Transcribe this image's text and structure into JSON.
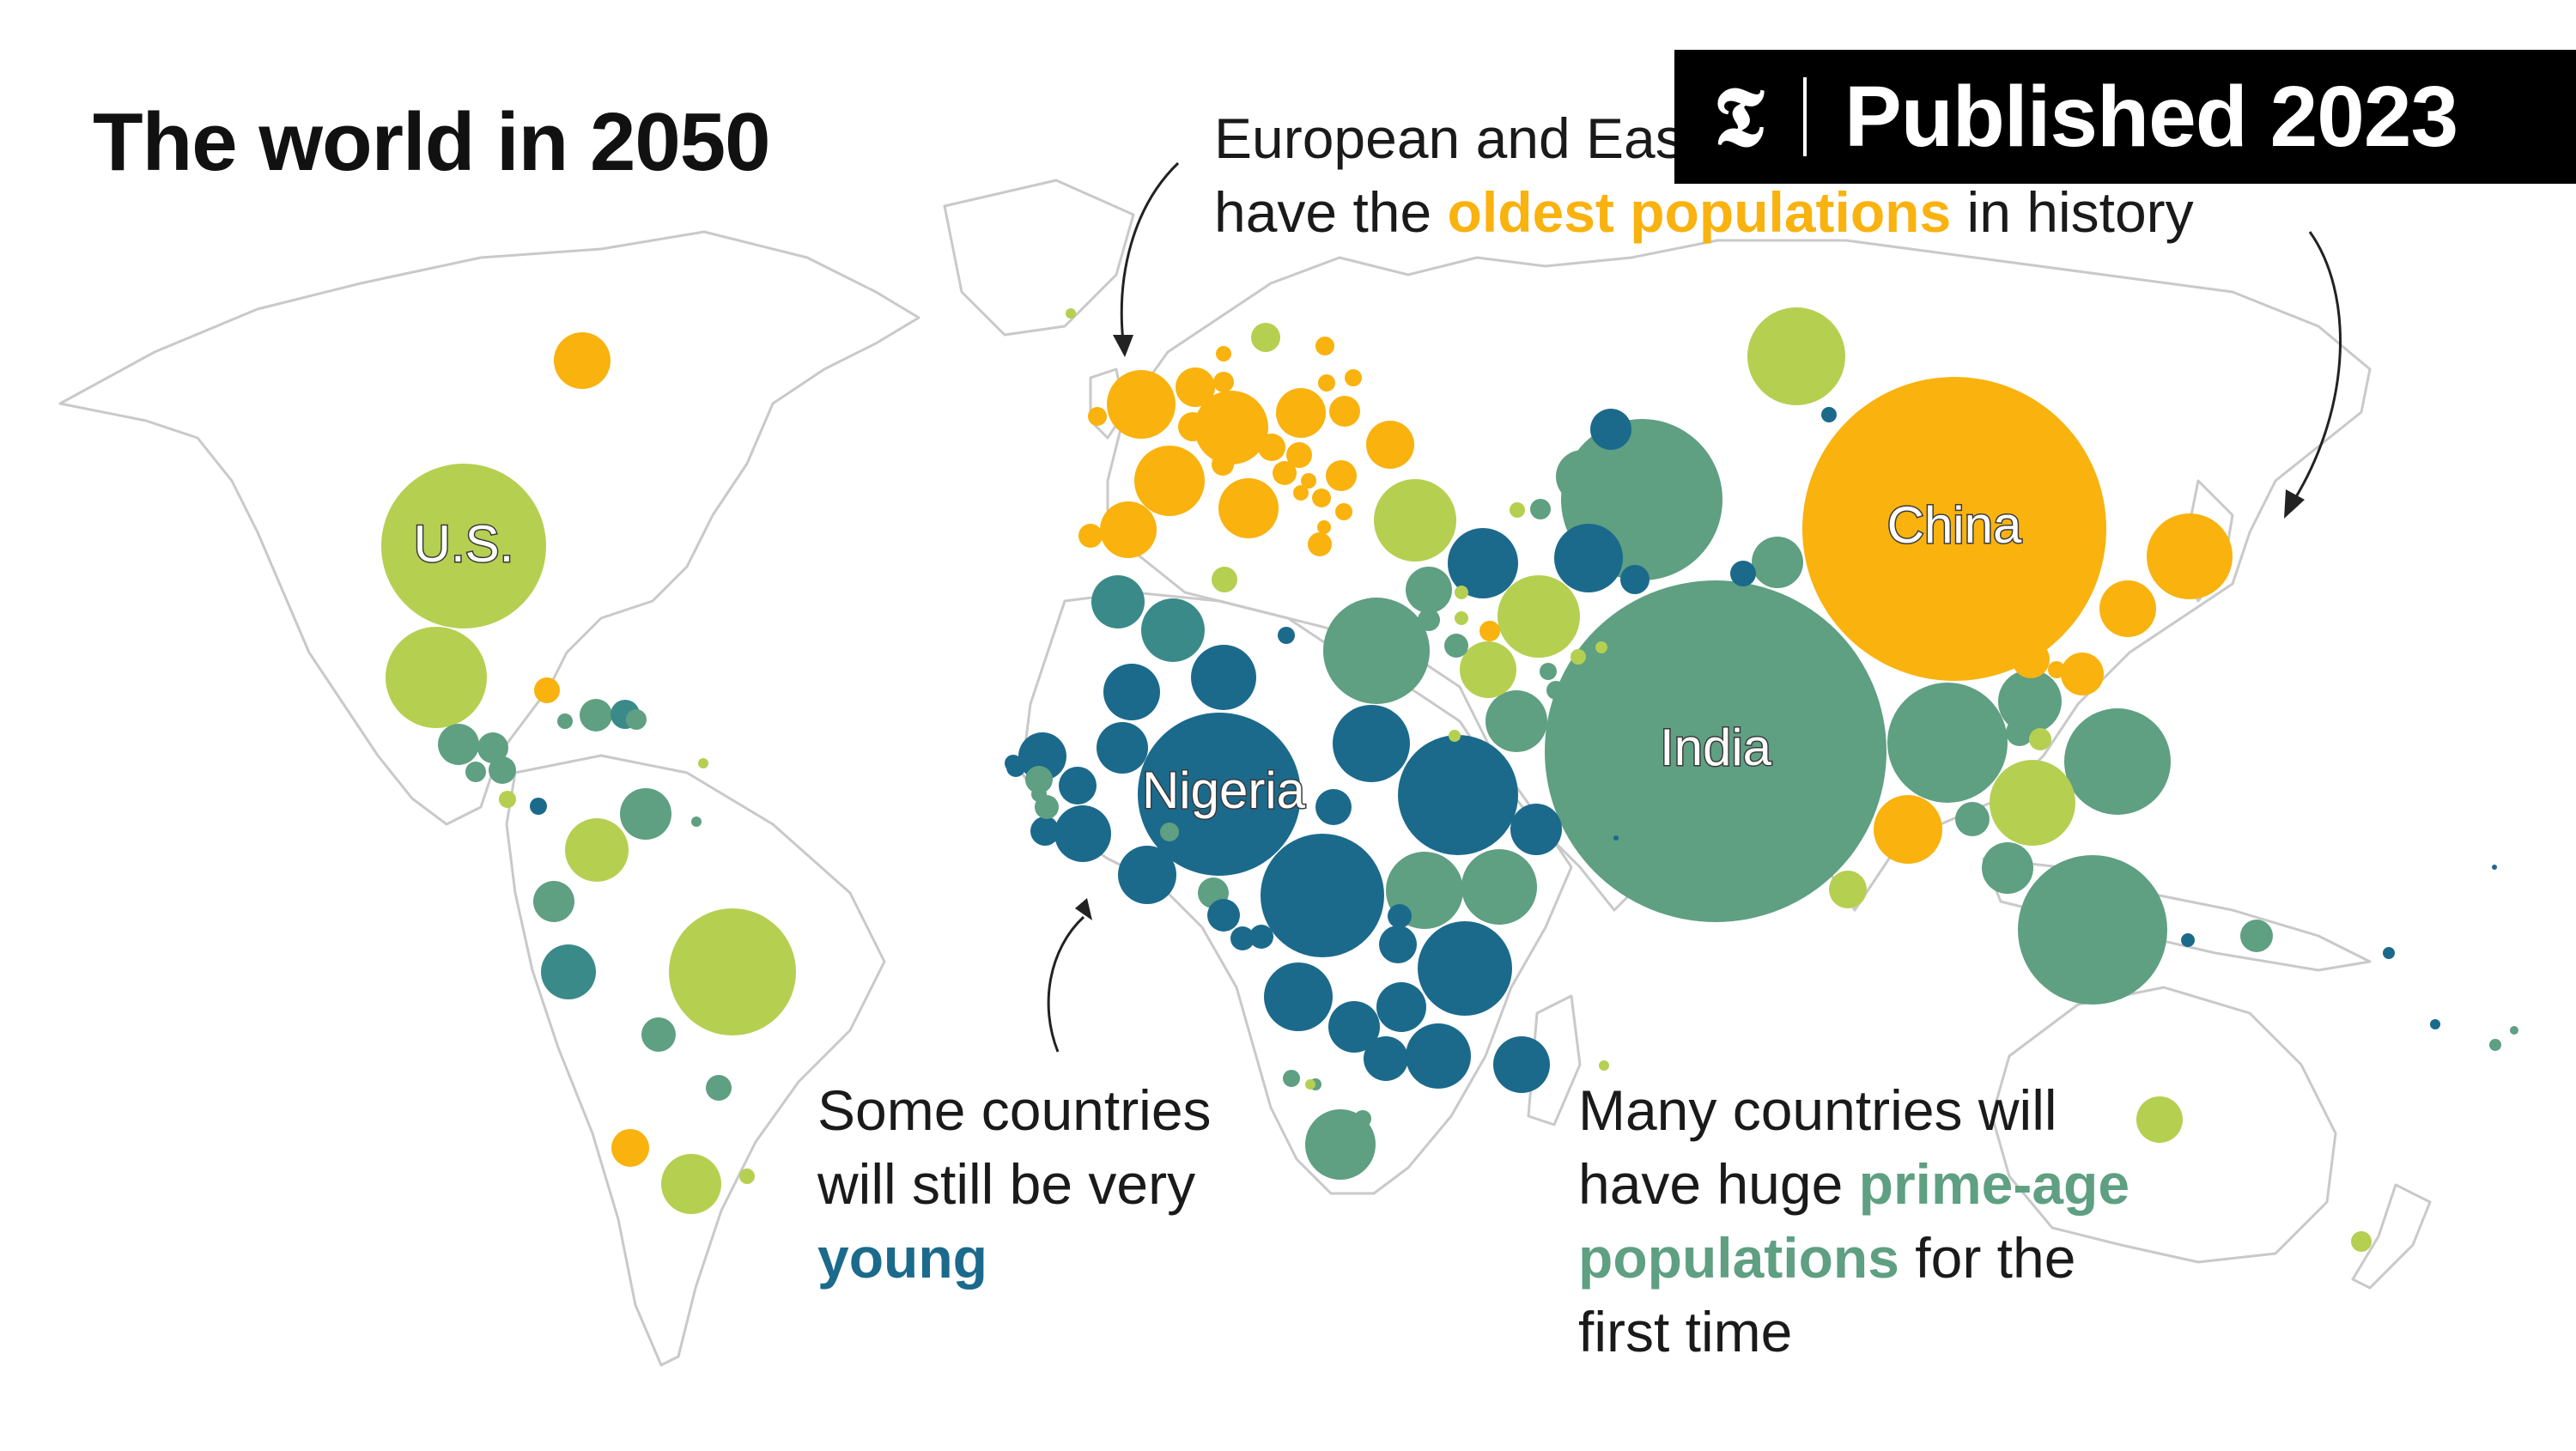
{
  "title": "The world in 2050",
  "badge": {
    "logo_icon": "nyt-t-logo",
    "text": "Published 2023"
  },
  "annotations": {
    "oldest": {
      "line1": "European and East Asian countries will",
      "line2_pre": "have the ",
      "line2_emph": "oldest populations",
      "line2_post": " in history"
    },
    "young": {
      "line1": "Some countries",
      "line2": "will still be very",
      "line3_emph": "young"
    },
    "prime": {
      "line1": "Many countries will",
      "line2_pre": "have huge ",
      "line2_emph": "prime-age",
      "line3_emph": "populations",
      "line3_post": " for the",
      "line4": "first time"
    }
  },
  "colors": {
    "oldest": "#f9b20e",
    "young": "#1b6a8c",
    "prime_age": "#5f9f82",
    "mixed": "#b5cf51",
    "teal": "#3b8a8a",
    "map_outline": "#c9c9c9"
  },
  "country_labels": [
    "U.S.",
    "China",
    "India",
    "Nigeria"
  ]
}
